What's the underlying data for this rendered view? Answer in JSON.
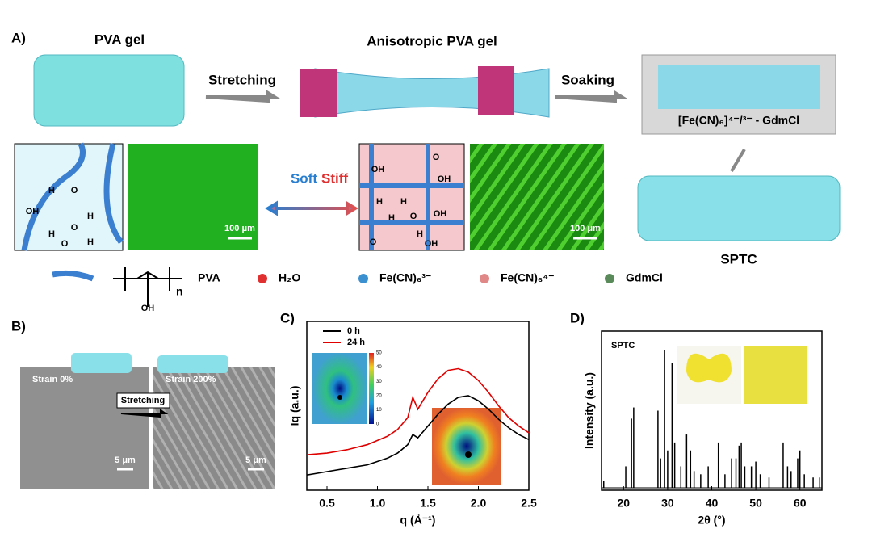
{
  "panel_a": {
    "label": "A)",
    "pva_gel": "PVA gel",
    "anisotropic_pva_gel": "Anisotropic PVA gel",
    "stretching": "Stretching",
    "soaking": "Soaking",
    "solution": "[Fe(CN)₆]⁴⁻/³⁻ - GdmCl",
    "sptc": "SPTC",
    "soft": "Soft",
    "stiff": "Stiff",
    "scale_left": "100 μm",
    "scale_right": "100 μm",
    "left_box_labels": [
      "H",
      "O",
      "OH",
      "H",
      "O",
      "H",
      "H",
      "O"
    ],
    "right_box_labels": [
      "OH",
      "O",
      "OH",
      "H",
      "H",
      "O",
      "H",
      "OH",
      "H",
      "OH",
      "O"
    ]
  },
  "legend": {
    "repeat_unit": "n",
    "side_group": "OH",
    "pva": "PVA",
    "water": "H₂O",
    "ferricyanide": "Fe(CN)₆³⁻",
    "ferrocyanide": "Fe(CN)₆⁴⁻",
    "gdmcl": "GdmCl"
  },
  "panel_b": {
    "label": "B)",
    "strain_0": "Strain 0%",
    "strain_200": "Strain 200%",
    "stretching": "Stretching",
    "scale_left": "5 μm",
    "scale_right": "5 μm"
  },
  "panel_c": {
    "label": "C)",
    "colorbar": {
      "lim": [
        0,
        50
      ],
      "ticks": [
        0,
        10,
        20,
        30,
        40,
        50
      ]
    },
    "chart_data": {
      "type": "line",
      "x_label": "q (Å⁻¹)",
      "y_label": "Iq (a.u.)",
      "x": [
        0.3,
        0.5,
        0.7,
        0.9,
        1.1,
        1.2,
        1.3,
        1.35,
        1.4,
        1.5,
        1.6,
        1.7,
        1.8,
        1.9,
        2.0,
        2.1,
        2.2,
        2.3,
        2.4,
        2.5
      ],
      "series": [
        {
          "name": "0 h",
          "color": "#000000",
          "values": [
            9,
            11,
            13,
            15,
            19,
            22,
            27,
            33,
            31,
            38,
            45,
            51,
            55,
            56,
            53,
            48,
            42,
            37,
            33,
            30
          ]
        },
        {
          "name": "24 h",
          "color": "#e00000",
          "values": [
            21,
            22,
            24,
            27,
            32,
            36,
            43,
            55,
            48,
            58,
            66,
            71,
            72,
            70,
            65,
            58,
            50,
            43,
            38,
            34
          ]
        }
      ],
      "xlim": [
        0.3,
        2.5
      ],
      "xticks": [
        0.5,
        {
          "value": 1,
          "label": "1.0"
        },
        1.5,
        {
          "value": 2,
          "label": "2.0"
        },
        2.5
      ],
      "ylim": [
        0,
        100
      ],
      "legend": "upper-left"
    }
  },
  "panel_d": {
    "label": "D)",
    "chart_data": {
      "type": "stem",
      "title": "SPTC",
      "x_label": "2θ (°)",
      "y_label": "Intensity (a.u.)",
      "color": "#000000",
      "x": [
        15.5,
        20.5,
        21.8,
        22.3,
        27.8,
        28.4,
        29.3,
        30.0,
        31.0,
        31.6,
        33.0,
        34.3,
        35.2,
        36.0,
        37.5,
        39.2,
        41.5,
        43.0,
        44.5,
        45.5,
        46.2,
        46.7,
        47.5,
        49.0,
        50.0,
        51.0,
        53.0,
        56.2,
        57.2,
        58.0,
        59.5,
        60.0,
        61.0,
        63.0,
        64.5
      ],
      "values": [
        6,
        15,
        45,
        52,
        50,
        20,
        88,
        25,
        80,
        30,
        15,
        35,
        25,
        12,
        10,
        15,
        30,
        10,
        20,
        20,
        28,
        30,
        15,
        15,
        18,
        10,
        8,
        30,
        15,
        12,
        20,
        25,
        10,
        8,
        8
      ],
      "xlim": [
        15,
        65
      ],
      "xticks": [
        20,
        30,
        40,
        50,
        60
      ],
      "ylim": [
        0,
        100
      ]
    }
  }
}
